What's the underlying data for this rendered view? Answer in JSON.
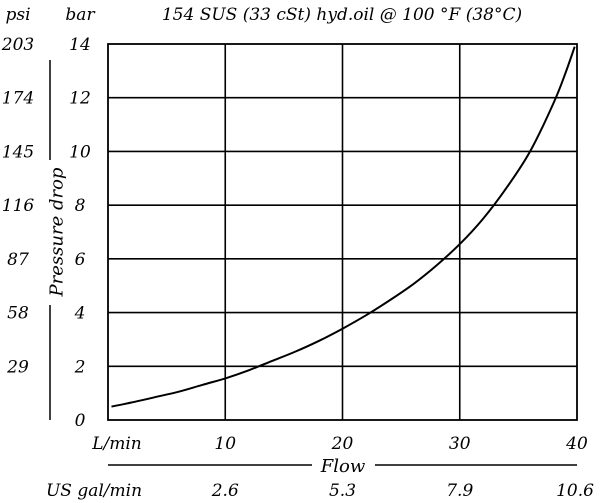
{
  "chart_data": {
    "type": "line",
    "title": "154 SUS (33 cSt) hyd.oil @ 100   °F (38°C)",
    "xlabel": "Flow",
    "ylabel": "Pressure drop",
    "x_unit_primary": "L/min",
    "x_unit_secondary": "US gal/min",
    "y_unit_primary": "bar",
    "y_unit_secondary": "psi",
    "xlim": [
      0,
      40
    ],
    "ylim": [
      0,
      14
    ],
    "grid": true,
    "x_ticks": [
      10,
      20,
      30,
      40
    ],
    "x_tick_labels": [
      "10",
      "20",
      "30",
      "40"
    ],
    "x_secondary_tick_labels": [
      "2.6",
      "5.3",
      "7.9",
      "10.6"
    ],
    "y_ticks": [
      0,
      2,
      4,
      6,
      8,
      10,
      12,
      14
    ],
    "y_tick_labels": [
      "0",
      "2",
      "4",
      "6",
      "8",
      "10",
      "12",
      "14"
    ],
    "y_secondary_tick_labels": [
      "",
      "29",
      "58",
      "87",
      "116",
      "145",
      "174",
      "203"
    ],
    "series": [
      {
        "color": "#000000",
        "x": [
          0.3,
          2,
          4,
          6,
          8,
          10,
          12,
          14,
          16,
          18,
          20,
          22,
          24,
          26,
          28,
          30,
          32,
          34,
          36,
          38,
          39,
          39.8
        ],
        "y": [
          0.5,
          0.65,
          0.85,
          1.05,
          1.3,
          1.55,
          1.85,
          2.2,
          2.55,
          2.95,
          3.4,
          3.9,
          4.45,
          5.05,
          5.75,
          6.55,
          7.5,
          8.65,
          10.0,
          11.8,
          12.9,
          13.9
        ]
      }
    ]
  }
}
